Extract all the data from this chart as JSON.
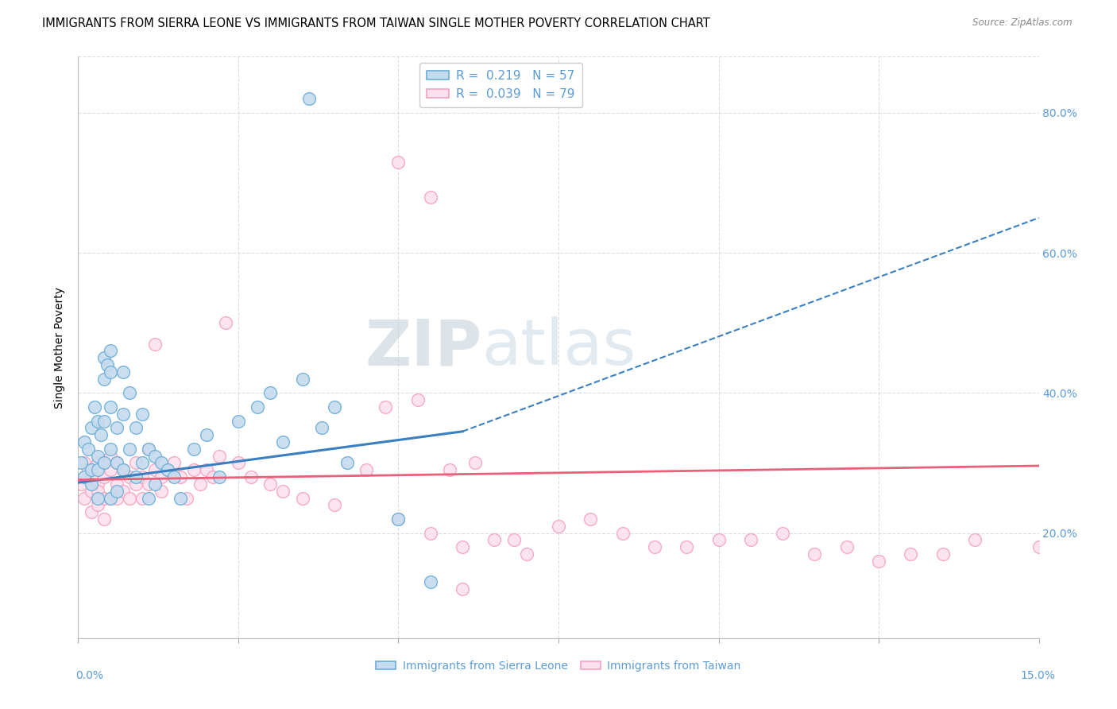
{
  "title": "IMMIGRANTS FROM SIERRA LEONE VS IMMIGRANTS FROM TAIWAN SINGLE MOTHER POVERTY CORRELATION CHART",
  "source": "Source: ZipAtlas.com",
  "ylabel": "Single Mother Poverty",
  "y_ticks": [
    0.2,
    0.4,
    0.6,
    0.8
  ],
  "y_tick_labels": [
    "20.0%",
    "40.0%",
    "60.0%",
    "80.0%"
  ],
  "xlim": [
    0.0,
    0.15
  ],
  "ylim": [
    0.05,
    0.88
  ],
  "legend_r1": "R =  0.219   N = 57",
  "legend_r2": "R =  0.039   N = 79",
  "watermark_zip": "ZIP",
  "watermark_atlas": "atlas",
  "blue_fill": "#c6dbef",
  "blue_edge": "#6baed6",
  "pink_fill": "#fce0ef",
  "pink_edge": "#f4a3c0",
  "trend_blue": "#3a7fc1",
  "trend_pink": "#e8607a",
  "grid_color": "#dddddd",
  "bg_color": "#ffffff",
  "right_label_color": "#5b9bd5",
  "title_fontsize": 10.5,
  "tick_fontsize": 10,
  "sl_x": [
    0.0005,
    0.001,
    0.001,
    0.0015,
    0.002,
    0.002,
    0.002,
    0.0025,
    0.003,
    0.003,
    0.003,
    0.003,
    0.0035,
    0.004,
    0.004,
    0.004,
    0.004,
    0.0045,
    0.005,
    0.005,
    0.005,
    0.005,
    0.005,
    0.006,
    0.006,
    0.006,
    0.007,
    0.007,
    0.007,
    0.008,
    0.008,
    0.009,
    0.009,
    0.01,
    0.01,
    0.011,
    0.011,
    0.012,
    0.012,
    0.013,
    0.014,
    0.015,
    0.016,
    0.018,
    0.02,
    0.022,
    0.025,
    0.028,
    0.03,
    0.032,
    0.035,
    0.038,
    0.04,
    0.042,
    0.05,
    0.055,
    0.036
  ],
  "sl_y": [
    0.3,
    0.33,
    0.28,
    0.32,
    0.35,
    0.29,
    0.27,
    0.38,
    0.36,
    0.31,
    0.29,
    0.25,
    0.34,
    0.45,
    0.42,
    0.36,
    0.3,
    0.44,
    0.46,
    0.43,
    0.38,
    0.32,
    0.25,
    0.35,
    0.3,
    0.26,
    0.43,
    0.37,
    0.29,
    0.4,
    0.32,
    0.35,
    0.28,
    0.37,
    0.3,
    0.32,
    0.25,
    0.31,
    0.27,
    0.3,
    0.29,
    0.28,
    0.25,
    0.32,
    0.34,
    0.28,
    0.36,
    0.38,
    0.4,
    0.33,
    0.42,
    0.35,
    0.38,
    0.3,
    0.22,
    0.13,
    0.82
  ],
  "tw_x": [
    0.0005,
    0.001,
    0.001,
    0.0015,
    0.002,
    0.002,
    0.002,
    0.003,
    0.003,
    0.003,
    0.003,
    0.004,
    0.004,
    0.004,
    0.005,
    0.005,
    0.005,
    0.006,
    0.006,
    0.006,
    0.007,
    0.007,
    0.008,
    0.008,
    0.009,
    0.009,
    0.01,
    0.01,
    0.011,
    0.011,
    0.012,
    0.012,
    0.013,
    0.013,
    0.014,
    0.015,
    0.016,
    0.017,
    0.018,
    0.019,
    0.02,
    0.021,
    0.022,
    0.023,
    0.025,
    0.027,
    0.03,
    0.032,
    0.035,
    0.04,
    0.045,
    0.05,
    0.055,
    0.06,
    0.065,
    0.07,
    0.075,
    0.08,
    0.09,
    0.1,
    0.11,
    0.12,
    0.13,
    0.14,
    0.15,
    0.048,
    0.053,
    0.058,
    0.062,
    0.068,
    0.085,
    0.095,
    0.105,
    0.115,
    0.125,
    0.135,
    0.05,
    0.055,
    0.06
  ],
  "tw_y": [
    0.27,
    0.3,
    0.25,
    0.29,
    0.28,
    0.26,
    0.23,
    0.3,
    0.27,
    0.26,
    0.24,
    0.28,
    0.25,
    0.22,
    0.31,
    0.29,
    0.25,
    0.3,
    0.27,
    0.25,
    0.29,
    0.26,
    0.28,
    0.25,
    0.3,
    0.27,
    0.28,
    0.25,
    0.32,
    0.27,
    0.47,
    0.29,
    0.28,
    0.26,
    0.29,
    0.3,
    0.28,
    0.25,
    0.29,
    0.27,
    0.29,
    0.28,
    0.31,
    0.5,
    0.3,
    0.28,
    0.27,
    0.26,
    0.25,
    0.24,
    0.29,
    0.22,
    0.2,
    0.18,
    0.19,
    0.17,
    0.21,
    0.22,
    0.18,
    0.19,
    0.2,
    0.18,
    0.17,
    0.19,
    0.18,
    0.38,
    0.39,
    0.29,
    0.3,
    0.19,
    0.2,
    0.18,
    0.19,
    0.17,
    0.16,
    0.17,
    0.73,
    0.68,
    0.12
  ],
  "trend_sl_x0": 0.0,
  "trend_sl_x1": 0.06,
  "trend_sl_y0": 0.272,
  "trend_sl_y1": 0.345,
  "trend_sl_dash_x0": 0.06,
  "trend_sl_dash_x1": 0.15,
  "trend_sl_dash_y0": 0.345,
  "trend_sl_dash_y1": 0.65,
  "trend_tw_x0": 0.0,
  "trend_tw_x1": 0.15,
  "trend_tw_y0": 0.276,
  "trend_tw_y1": 0.296
}
